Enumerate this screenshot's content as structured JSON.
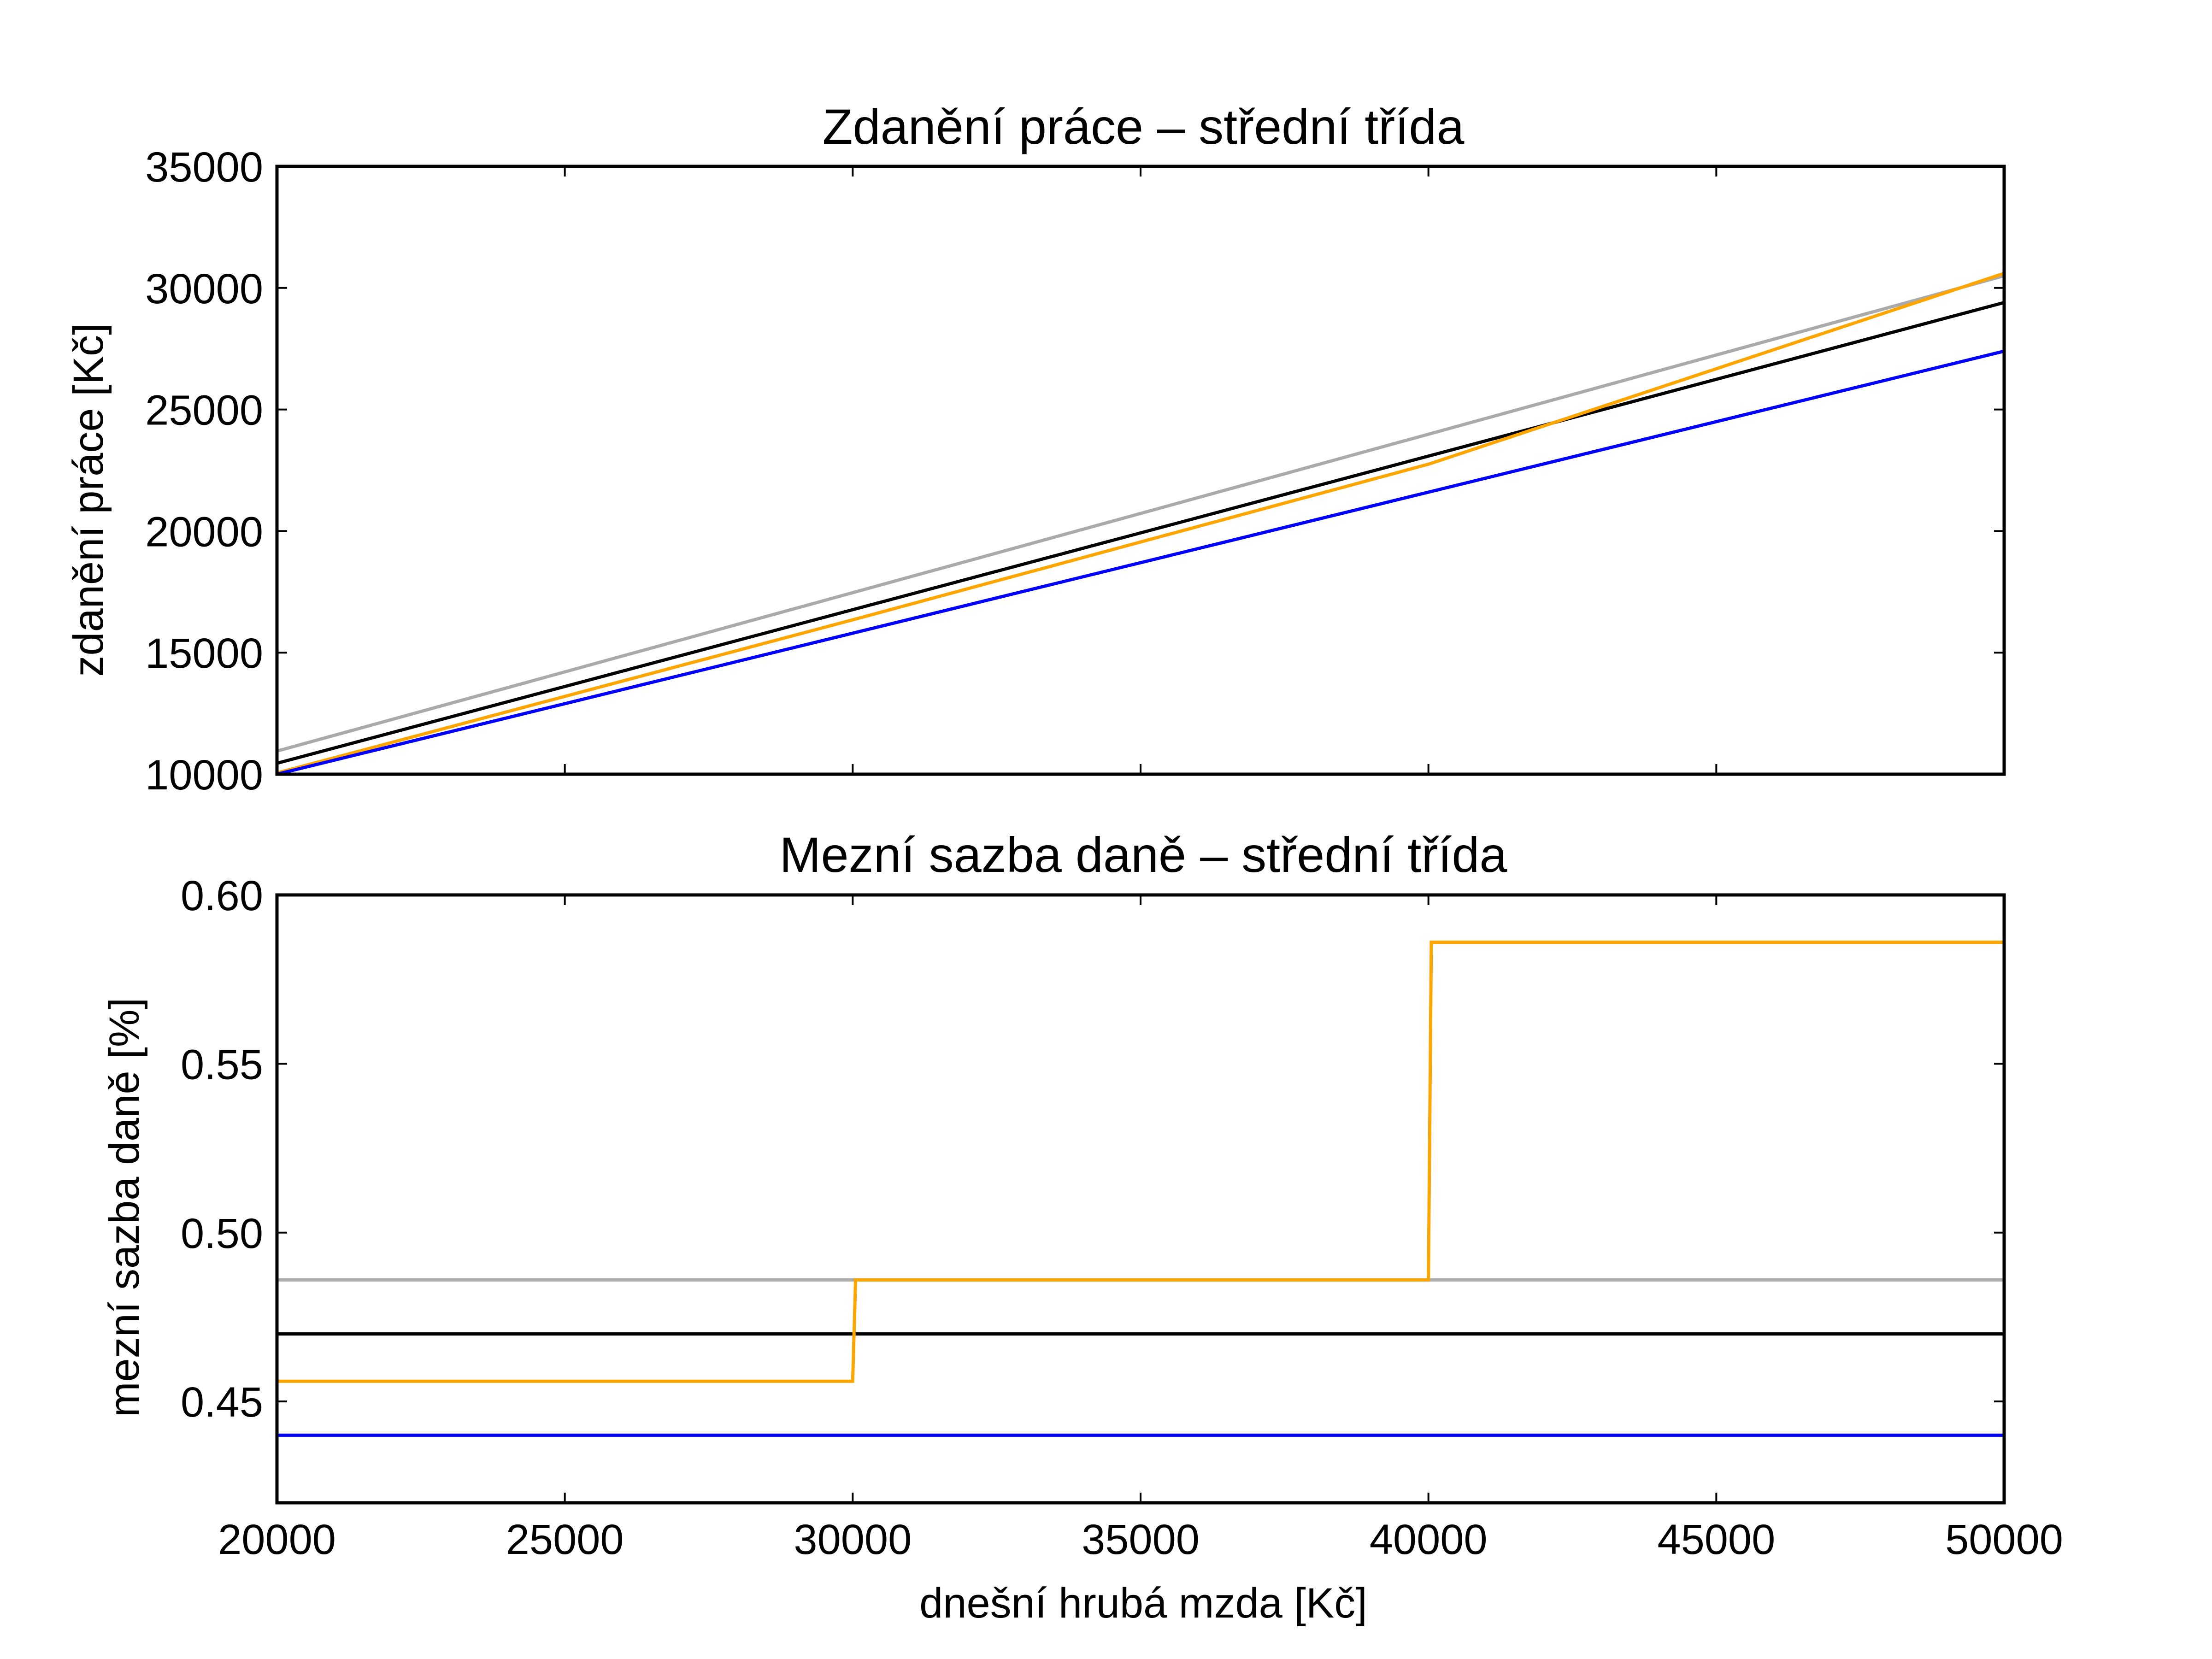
{
  "chart_data": [
    {
      "type": "line",
      "title": "Zdanění práce – střední třída",
      "xlabel": "",
      "ylabel": "zdanění práce [Kč]",
      "xlim": [
        20000,
        50000
      ],
      "ylim": [
        10000,
        35000
      ],
      "x_ticks": [
        "20000",
        "25000",
        "30000",
        "35000",
        "40000",
        "45000",
        "50000"
      ],
      "y_ticks": [
        "10000",
        "15000",
        "20000",
        "25000",
        "30000",
        "35000"
      ],
      "grid": false,
      "series": [
        {
          "color": "#aaaaaa",
          "x": [
            20000,
            50000
          ],
          "y": [
            10950,
            30500
          ]
        },
        {
          "color": "#000000",
          "x": [
            20000,
            50000
          ],
          "y": [
            10450,
            29400
          ]
        },
        {
          "color": "#ffa500",
          "x": [
            20000,
            30000,
            40000,
            50000
          ],
          "y": [
            10050,
            16350,
            22750,
            30600
          ]
        },
        {
          "color": "#0000ff",
          "x": [
            20000,
            50000
          ],
          "y": [
            10000,
            27400
          ]
        }
      ]
    },
    {
      "type": "line",
      "title": "Mezní sazba daně  – střední třída",
      "xlabel": "dnešní hrubá mzda [Kč]",
      "ylabel": "mezní sazba daně [%]",
      "xlim": [
        20000,
        50000
      ],
      "ylim": [
        0.42,
        0.6
      ],
      "x_ticks": [
        "20000",
        "25000",
        "30000",
        "35000",
        "40000",
        "45000",
        "50000"
      ],
      "y_ticks": [
        "0.45",
        "0.50",
        "0.55",
        "0.60"
      ],
      "grid": false,
      "series": [
        {
          "color": "#aaaaaa",
          "x": [
            20000,
            50000
          ],
          "y": [
            0.486,
            0.486
          ]
        },
        {
          "color": "#000000",
          "x": [
            20000,
            50000
          ],
          "y": [
            0.47,
            0.47
          ]
        },
        {
          "color": "#ffa500",
          "x": [
            20000,
            30000,
            30050,
            40000,
            40050,
            50000
          ],
          "y": [
            0.456,
            0.456,
            0.486,
            0.486,
            0.586,
            0.586
          ]
        },
        {
          "color": "#0000ff",
          "x": [
            20000,
            50000
          ],
          "y": [
            0.44,
            0.44
          ]
        }
      ]
    }
  ]
}
